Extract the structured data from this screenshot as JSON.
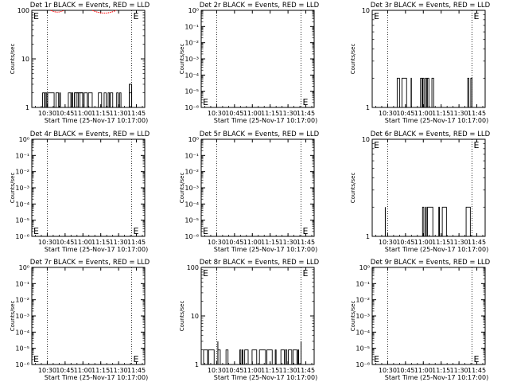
{
  "figure": {
    "background": "#ffffff",
    "events_color": "#000000",
    "lld_color": "#ff0000"
  },
  "chart_data": [
    {
      "type": "line",
      "title": "Det 1r BLACK = Events, RED = LLD",
      "xlabel": "Start Time (25-Nov-17 10:17:00)",
      "ylabel": "Counts/sec",
      "x_ticks": [
        "10:30",
        "10:45",
        "11:00",
        "11:15",
        "11:30",
        "11:45"
      ],
      "y_scale": "log",
      "y_ticks": [
        "1",
        "10",
        "100"
      ],
      "ylim": [
        1,
        100
      ],
      "markers": [
        "E",
        "E"
      ],
      "vlines": [
        "10:30",
        "11:41"
      ],
      "series": [
        {
          "color": "#000000",
          "blocks": [
            {
              "start": "10:25:00",
              "end": "10:41:00",
              "low": 1,
              "high": 2
            },
            {
              "start": "10:47:00",
              "end": "10:53:00",
              "low": 1,
              "high": 2
            },
            {
              "start": "10:55:00",
              "end": "11:32:00",
              "low": 1,
              "high": 2
            },
            {
              "start": "11:39:00",
              "end": "11:41:00",
              "low": 1,
              "high": 2
            }
          ],
          "steps": [
            {
              "start": "10:53:00",
              "end": "11:00:00",
              "value": 2
            },
            {
              "start": "11:39:00",
              "end": "11:41:00",
              "value": 3
            }
          ]
        },
        {
          "color": "#ff0000",
          "arcs": [
            {
              "start": "10:33:00",
              "end": "10:44:00",
              "low": 92,
              "high": 100
            },
            {
              "start": "11:08:00",
              "end": "11:28:00",
              "low": 88,
              "high": 100
            }
          ]
        }
      ]
    },
    {
      "type": "line",
      "title": "Det 2r BLACK = Events, RED = LLD",
      "xlabel": "Start Time (25-Nov-17 10:17:00)",
      "ylabel": "Counts/sec",
      "x_ticks": [
        "10:30",
        "10:45",
        "11:00",
        "11:15",
        "11:30",
        "11:45"
      ],
      "y_scale": "log",
      "y_ticks": [
        "10⁻⁶",
        "10⁻⁵",
        "10⁻⁴",
        "10⁻³",
        "10⁻²",
        "10⁻¹",
        "10⁰"
      ],
      "ylim": [
        1e-06,
        1
      ],
      "markers": [
        "E",
        "E"
      ],
      "vlines": [
        "10:30",
        "11:41"
      ],
      "series": []
    },
    {
      "type": "line",
      "title": "Det 3r BLACK = Events, RED = LLD",
      "xlabel": "Start Time (25-Nov-17 10:17:00)",
      "ylabel": "Counts/sec",
      "x_ticks": [
        "10:30",
        "10:45",
        "11:00",
        "11:15",
        "11:30",
        "11:45"
      ],
      "y_scale": "log",
      "y_ticks": [
        "1",
        "10"
      ],
      "ylim": [
        1,
        10
      ],
      "markers": [
        "E",
        "E"
      ],
      "vlines": [
        "10:30",
        "11:41"
      ],
      "series": [
        {
          "color": "#000000",
          "blocks": [
            {
              "start": "10:38:00",
              "end": "10:40:00",
              "low": 1,
              "high": 2
            },
            {
              "start": "10:42:00",
              "end": "10:50:00",
              "low": 1,
              "high": 2
            },
            {
              "start": "10:57:00",
              "end": "11:11:00",
              "low": 1,
              "high": 2
            },
            {
              "start": "11:35:00",
              "end": "11:41:00",
              "low": 1,
              "high": 2
            }
          ]
        }
      ]
    },
    {
      "type": "line",
      "title": "Det 4r BLACK = Events, RED = LLD",
      "xlabel": "Start Time (25-Nov-17 10:17:00)",
      "ylabel": "Counts/sec",
      "x_ticks": [
        "10:30",
        "10:45",
        "11:00",
        "11:15",
        "11:30",
        "11:45"
      ],
      "y_scale": "log",
      "y_ticks": [
        "10⁻⁶",
        "10⁻⁵",
        "10⁻⁴",
        "10⁻³",
        "10⁻²",
        "10⁻¹",
        "10⁰"
      ],
      "ylim": [
        1e-06,
        1
      ],
      "markers": [
        "E",
        "E"
      ],
      "vlines": [
        "10:30",
        "11:41"
      ],
      "series": []
    },
    {
      "type": "line",
      "title": "Det 5r BLACK = Events, RED = LLD",
      "xlabel": "Start Time (25-Nov-17 10:17:00)",
      "ylabel": "Counts/sec",
      "x_ticks": [
        "10:30",
        "10:45",
        "11:00",
        "11:15",
        "11:30",
        "11:45"
      ],
      "y_scale": "log",
      "y_ticks": [
        "10⁻⁶",
        "10⁻⁵",
        "10⁻⁴",
        "10⁻³",
        "10⁻²",
        "10⁻¹",
        "10⁰"
      ],
      "ylim": [
        1e-06,
        1
      ],
      "markers": [
        "E",
        "E"
      ],
      "vlines": [
        "10:30",
        "11:41"
      ],
      "series": []
    },
    {
      "type": "line",
      "title": "Det 6r BLACK = Events, RED = LLD",
      "xlabel": "Start Time (25-Nov-17 10:17:00)",
      "ylabel": "Counts/sec",
      "x_ticks": [
        "10:30",
        "10:45",
        "11:00",
        "11:15",
        "11:30",
        "11:45"
      ],
      "y_scale": "log",
      "y_ticks": [
        "1",
        "10"
      ],
      "ylim": [
        1,
        10
      ],
      "markers": [
        "E",
        "E"
      ],
      "vlines": [
        "10:30",
        "11:41"
      ],
      "series": [
        {
          "color": "#000000",
          "spikes": [
            {
              "time": "10:28:00",
              "value": 2
            }
          ],
          "blocks": [
            {
              "start": "10:58:00",
              "end": "11:08:00",
              "low": 1,
              "high": 2
            },
            {
              "start": "11:13:00",
              "end": "11:20:00",
              "low": 1,
              "high": 2
            },
            {
              "start": "11:36:00",
              "end": "11:41:00",
              "low": 1,
              "high": 2
            }
          ]
        }
      ]
    },
    {
      "type": "line",
      "title": "Det 7r BLACK = Events, RED = LLD",
      "xlabel": "Start Time (25-Nov-17 10:17:00)",
      "ylabel": "Counts/sec",
      "x_ticks": [
        "10:30",
        "10:45",
        "11:00",
        "11:15",
        "11:30",
        "11:45"
      ],
      "y_scale": "log",
      "y_ticks": [
        "10⁻⁶",
        "10⁻⁵",
        "10⁻⁴",
        "10⁻³",
        "10⁻²",
        "10⁻¹",
        "10⁰"
      ],
      "ylim": [
        1e-06,
        1
      ],
      "markers": [
        "E",
        "E"
      ],
      "vlines": [
        "10:30",
        "11:41"
      ],
      "series": []
    },
    {
      "type": "line",
      "title": "Det 8r BLACK = Events, RED = LLD",
      "xlabel": "Start Time (25-Nov-17 10:17:00)",
      "ylabel": "Counts/sec",
      "x_ticks": [
        "10:30",
        "10:45",
        "11:00",
        "11:15",
        "11:30",
        "11:45"
      ],
      "y_scale": "log",
      "y_ticks": [
        "1",
        "10",
        "100"
      ],
      "ylim": [
        1,
        100
      ],
      "markers": [
        "E",
        "E"
      ],
      "vlines": [
        "10:30",
        "11:41"
      ],
      "series": [
        {
          "color": "#000000",
          "blocks": [
            {
              "start": "10:19:00",
              "end": "10:33:00",
              "low": 1,
              "high": 2
            },
            {
              "start": "10:36:00",
              "end": "10:40:00",
              "low": 1,
              "high": 2
            },
            {
              "start": "10:45:00",
              "end": "11:39:00",
              "low": 1,
              "high": 2
            }
          ],
          "spikes": [
            {
              "time": "10:31:00",
              "value": 3
            },
            {
              "time": "11:41:00",
              "value": 3
            }
          ]
        }
      ]
    },
    {
      "type": "line",
      "title": "Det 9r BLACK = Events, RED = LLD",
      "xlabel": "Start Time (25-Nov-17 10:17:00)",
      "ylabel": "Counts/sec",
      "x_ticks": [
        "10:30",
        "10:45",
        "11:00",
        "11:15",
        "11:30",
        "11:45"
      ],
      "y_scale": "log",
      "y_ticks": [
        "10⁻⁶",
        "10⁻⁵",
        "10⁻⁴",
        "10⁻³",
        "10⁻²",
        "10⁻¹",
        "10⁰"
      ],
      "ylim": [
        1e-06,
        1
      ],
      "markers": [
        "E",
        "E"
      ],
      "vlines": [
        "10:30",
        "11:41"
      ],
      "series": []
    }
  ]
}
